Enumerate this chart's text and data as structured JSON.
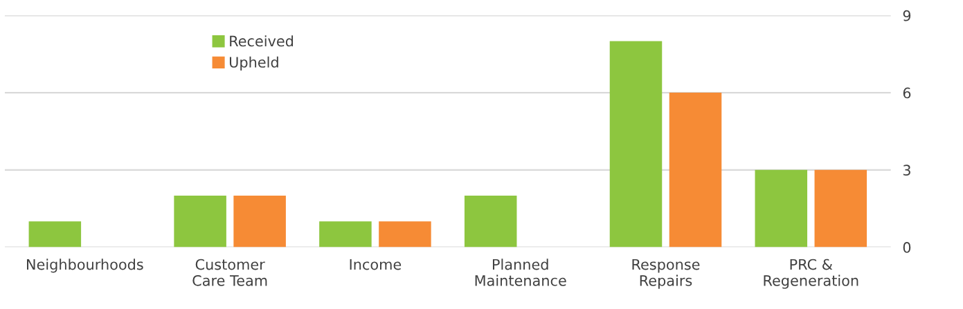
{
  "chart_data": {
    "type": "bar",
    "categories": [
      "Neighbourhoods",
      "Customer\nCare Team",
      "Income",
      "Planned\nMaintenance",
      "Response\nRepairs",
      "PRC &\nRegeneration"
    ],
    "series": [
      {
        "name": "Received",
        "color": "#8dc63f",
        "values": [
          1,
          2,
          1,
          2,
          8,
          3
        ]
      },
      {
        "name": "Upheld",
        "color": "#f68b35",
        "values": [
          0,
          2,
          1,
          0,
          6,
          3
        ]
      }
    ],
    "ylim": [
      0,
      9
    ],
    "yticks": [
      0,
      3,
      6,
      9
    ],
    "grid": "y",
    "legend": "top left"
  }
}
